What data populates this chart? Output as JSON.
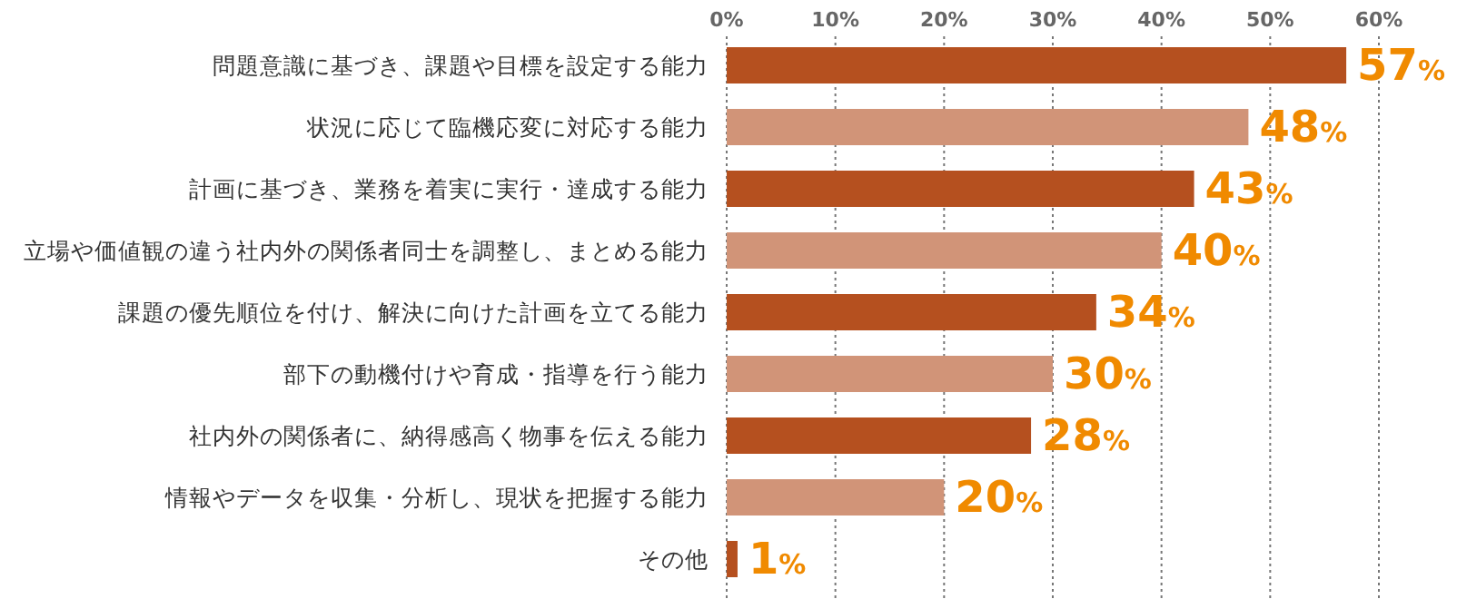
{
  "chart_data": {
    "type": "bar",
    "orientation": "horizontal",
    "categories": [
      "問題意識に基づき、課題や目標を設定する能力",
      "状況に応じて臨機応変に対応する能力",
      "計画に基づき、業務を着実に実行・達成する能力",
      "立場や価値観の違う社内外の関係者同士を調整し、まとめる能力",
      "課題の優先順位を付け、解決に向けた計画を立てる能力",
      "部下の動機付けや育成・指導を行う能力",
      "社内外の関係者に、納得感高く物事を伝える能力",
      "情報やデータを収集・分析し、現状を把握する能力",
      "その他"
    ],
    "values": [
      57,
      48,
      43,
      40,
      34,
      30,
      28,
      20,
      1
    ],
    "colors": [
      "#b5501f",
      "#d19478",
      "#b5501f",
      "#d19478",
      "#b5501f",
      "#d19478",
      "#b5501f",
      "#d19478",
      "#b5501f"
    ],
    "value_labels": [
      "57%",
      "48%",
      "43%",
      "40%",
      "34%",
      "30%",
      "28%",
      "20%",
      "1%"
    ],
    "xlim": [
      0,
      60
    ],
    "xticks": [
      {
        "value": 0,
        "label": "0%"
      },
      {
        "value": 10,
        "label": "10%"
      },
      {
        "value": 20,
        "label": "20%"
      },
      {
        "value": 30,
        "label": "30%"
      },
      {
        "value": 40,
        "label": "40%"
      },
      {
        "value": 50,
        "label": "50%"
      },
      {
        "value": 60,
        "label": "60%"
      }
    ],
    "grid": "x"
  }
}
